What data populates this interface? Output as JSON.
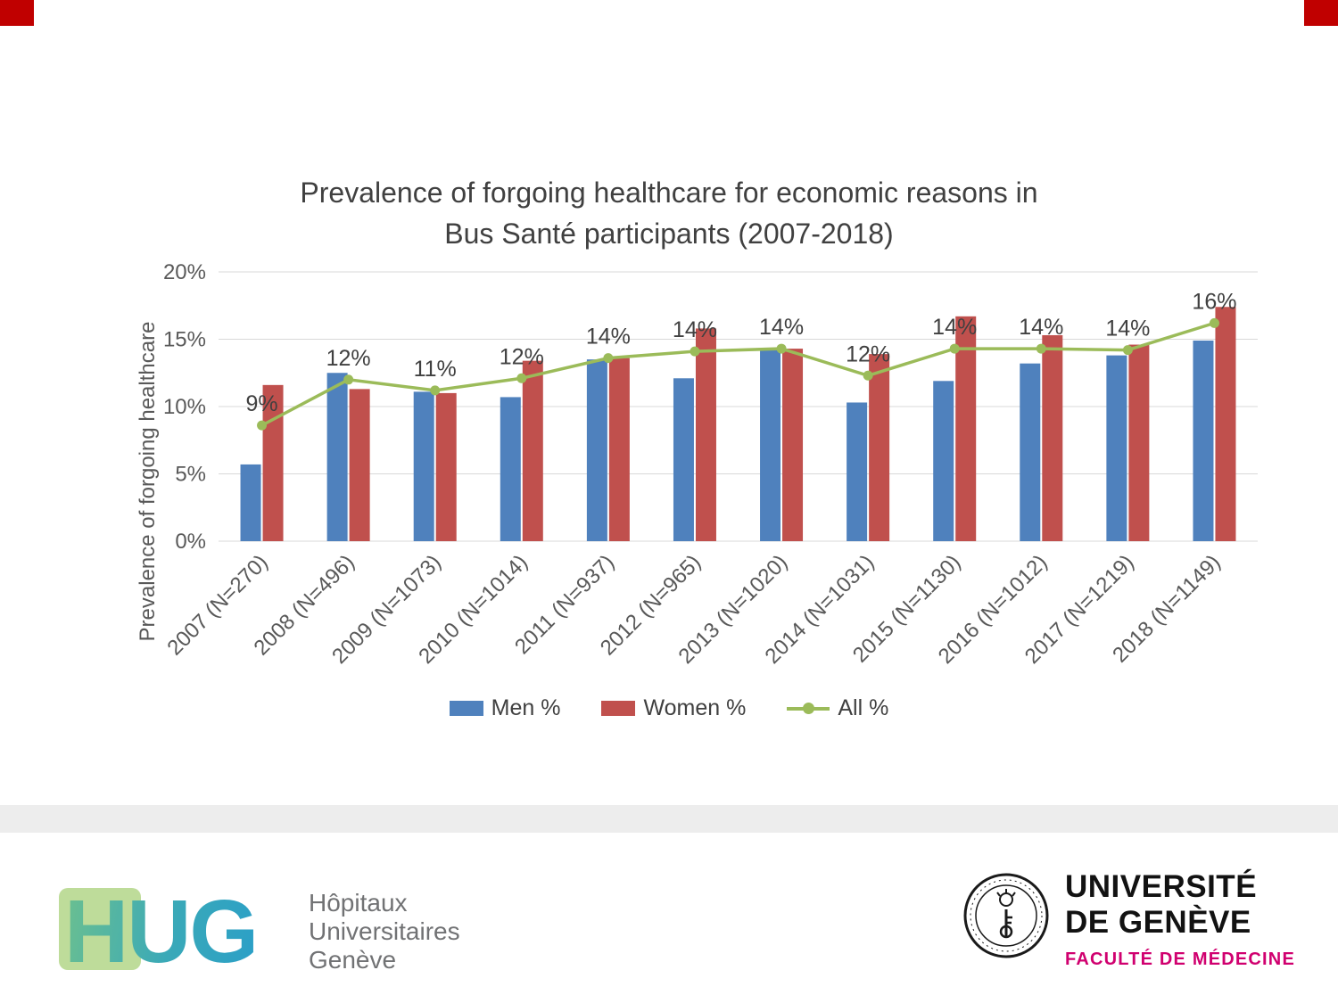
{
  "chart_data": {
    "type": "bar",
    "title_line1": "Prevalence of forgoing healthcare for economic reasons in",
    "title_line2": "Bus Santé participants (2007-2018)",
    "ylabel": "Prevalence of forgoing healthcare",
    "ylim": [
      0,
      20
    ],
    "yticks": [
      0,
      5,
      10,
      15,
      20
    ],
    "ytick_labels": [
      "0%",
      "5%",
      "10%",
      "15%",
      "20%"
    ],
    "categories": [
      "2007 (N=270)",
      "2008 (N=496)",
      "2009 (N=1073)",
      "2010 (N=1014)",
      "2011 (N=937)",
      "2012 (N=965)",
      "2013 (N=1020)",
      "2014 (N=1031)",
      "2015 (N=1130)",
      "2016 (N=1012)",
      "2017 (N=1219)",
      "2018 (N=1149)"
    ],
    "series": [
      {
        "name": "Men %",
        "type": "bar",
        "color": "#4f81bd",
        "values": [
          5.7,
          12.5,
          11.1,
          10.7,
          13.5,
          12.1,
          14.2,
          10.3,
          11.9,
          13.2,
          13.8,
          14.9
        ]
      },
      {
        "name": "Women %",
        "type": "bar",
        "color": "#c0504d",
        "values": [
          11.6,
          11.3,
          11.0,
          13.4,
          13.6,
          15.8,
          14.3,
          13.9,
          16.7,
          15.3,
          14.6,
          17.4
        ]
      },
      {
        "name": "All %",
        "type": "line",
        "color": "#9bbb59",
        "values": [
          8.6,
          12.0,
          11.2,
          12.1,
          13.6,
          14.1,
          14.3,
          12.3,
          14.3,
          14.3,
          14.2,
          16.2
        ],
        "labels": [
          "9%",
          "12%",
          "11%",
          "12%",
          "14%",
          "14%",
          "14%",
          "12%",
          "14%",
          "14%",
          "14%",
          "16%"
        ]
      }
    ],
    "legend_position": "bottom",
    "grid": "horizontal"
  },
  "colors": {
    "men_bar": "#4f81bd",
    "women_bar": "#c0504d",
    "all_line": "#9bbb59",
    "title_text": "#404040",
    "axis_text": "#595959",
    "gridline": "#d9d9d9",
    "corner_accent": "#c00000",
    "divider_gray": "#ededed",
    "hug_text_gray": "#717274",
    "unige_magenta": "#d0006f"
  },
  "footer": {
    "hug": {
      "logo_text": "HUG",
      "line1": "Hôpitaux",
      "line2": "Universitaires",
      "line3": "Genève"
    },
    "unige": {
      "line1": "UNIVERSITÉ",
      "line2": "DE GENÈVE",
      "faculty": "FACULTÉ DE MÉDECINE"
    }
  }
}
